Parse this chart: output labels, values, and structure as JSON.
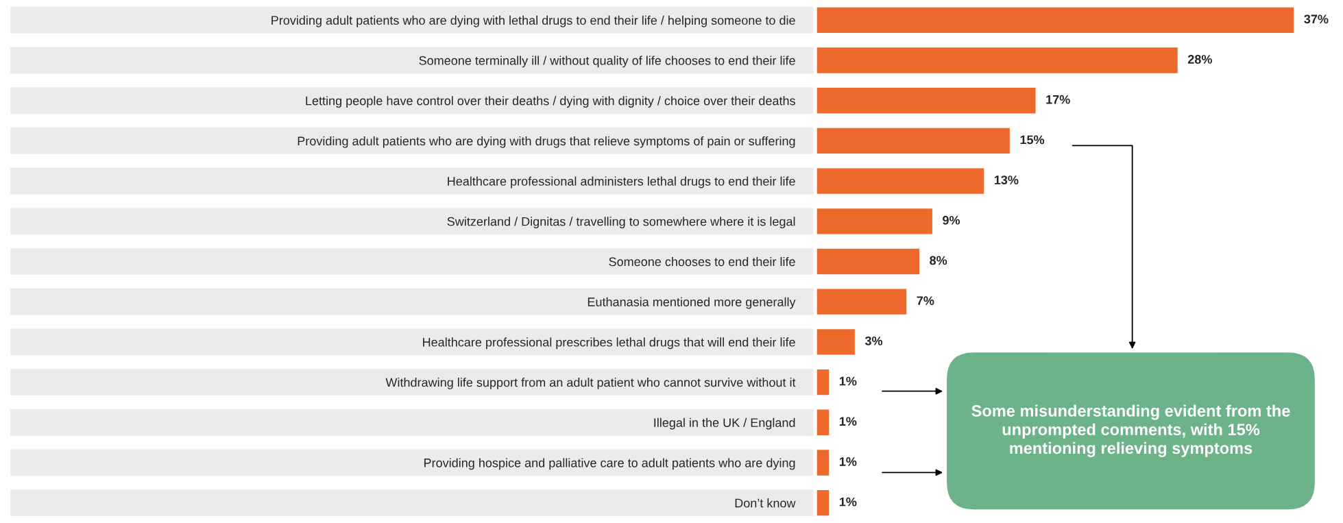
{
  "chart_data": {
    "type": "bar",
    "orientation": "horizontal",
    "categories": [
      "Providing adult patients who are dying with lethal drugs to end their life / helping someone to die",
      "Someone terminally ill / without quality of life chooses to end their life",
      "Letting people have control over their deaths / dying with dignity / choice over their deaths",
      "Providing adult patients who are dying with drugs that relieve symptoms of pain or suffering",
      "Healthcare professional administers lethal drugs to end their life",
      "Switzerland / Dignitas / travelling to somewhere where it is legal",
      "Someone chooses to end their life",
      "Euthanasia mentioned more generally",
      "Healthcare professional prescribes lethal drugs that will end their life",
      "Withdrawing life support from an adult patient who cannot survive without it",
      "Illegal in the UK / England",
      "Providing hospice and palliative care to adult patients who are dying",
      "Don’t know"
    ],
    "values": [
      37,
      28,
      17,
      15,
      13,
      9,
      8,
      7,
      3,
      1,
      1,
      1,
      1
    ],
    "value_labels": [
      "37%",
      "28%",
      "17%",
      "15%",
      "13%",
      "9%",
      "8%",
      "7%",
      "3%",
      "1%",
      "1%",
      "1%",
      "1%"
    ],
    "color": "#ed6a2c",
    "tick_labels": "y",
    "grid": false,
    "legend": false,
    "annotations": [
      "Some misunderstanding evident from the unprompted comments, with 15% mentioning relieving symptoms"
    ]
  }
}
